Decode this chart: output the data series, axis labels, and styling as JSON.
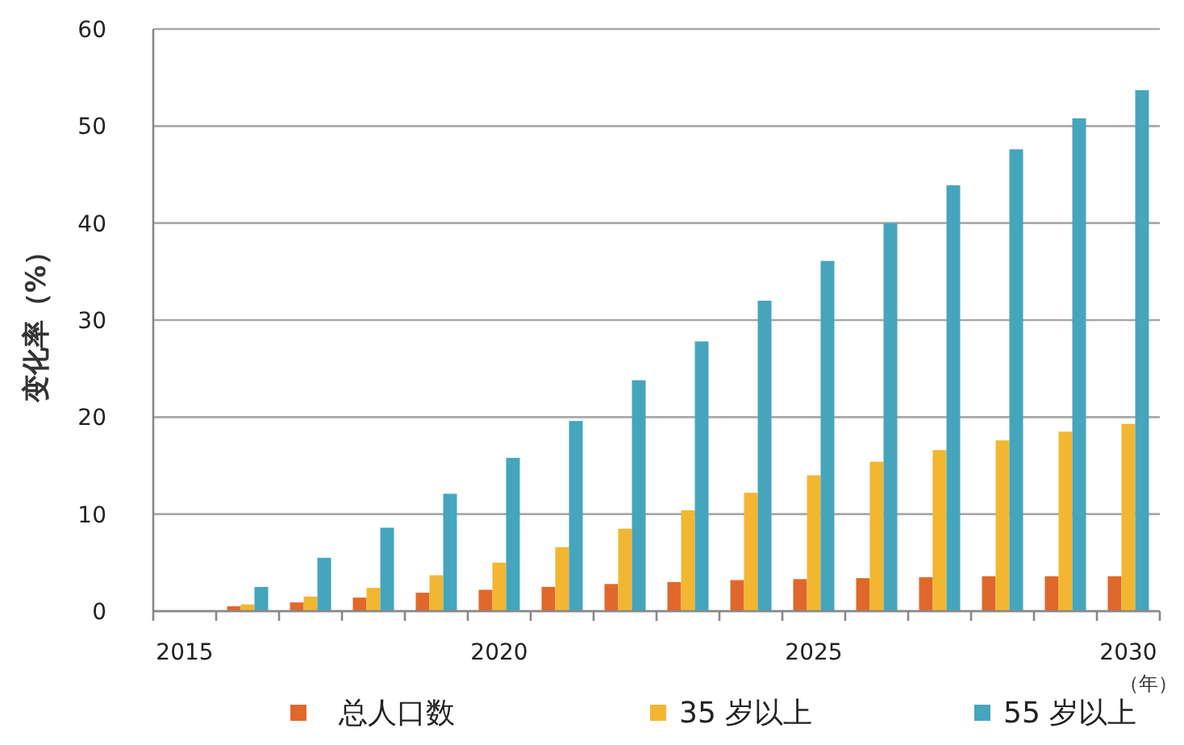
{
  "chart_data": {
    "type": "bar",
    "ylabel": "变化率（%）",
    "xlabel": "（年）",
    "categories": [
      "2015",
      null,
      null,
      null,
      null,
      "2020",
      null,
      null,
      null,
      null,
      "2025",
      null,
      null,
      null,
      null,
      "2030"
    ],
    "series": [
      {
        "name": "总人口数",
        "color": "#e0682a",
        "values": [
          null,
          0.5,
          0.9,
          1.4,
          1.9,
          2.2,
          2.5,
          2.8,
          3.0,
          3.2,
          3.3,
          3.4,
          3.5,
          3.6,
          3.6,
          3.6
        ]
      },
      {
        "name": "35 岁以上",
        "color": "#f2b631",
        "values": [
          null,
          0.7,
          1.5,
          2.4,
          3.7,
          5.0,
          6.6,
          8.5,
          10.4,
          12.2,
          14.0,
          15.4,
          16.6,
          17.6,
          18.5,
          19.3
        ]
      },
      {
        "name": "55 岁以上",
        "color": "#45a5bd",
        "values": [
          null,
          2.5,
          5.5,
          8.6,
          12.1,
          15.8,
          19.6,
          23.8,
          27.8,
          32.0,
          36.1,
          40.0,
          43.9,
          47.6,
          50.8,
          53.7
        ]
      }
    ],
    "ylim": [
      0,
      60
    ],
    "yticks": [
      0,
      10,
      20,
      30,
      40,
      50,
      60
    ],
    "grid": "y",
    "legend": "bottom"
  }
}
